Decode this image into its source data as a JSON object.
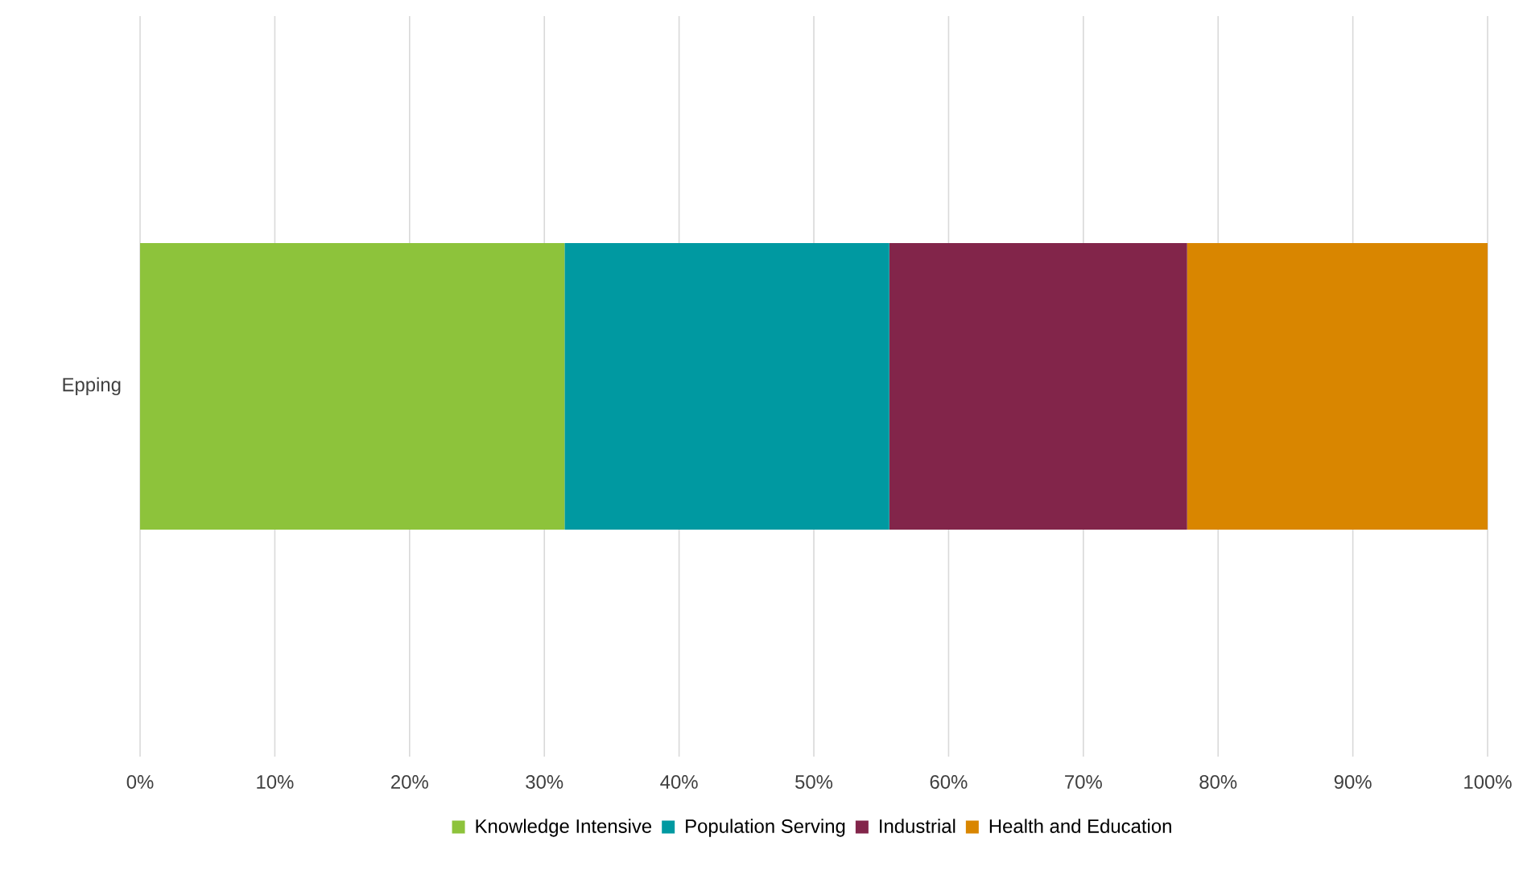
{
  "chart_data": {
    "type": "bar",
    "orientation": "horizontal",
    "stacked": true,
    "categories": [
      "Epping"
    ],
    "series": [
      {
        "name": "Knowledge Intensive",
        "color": "#8dc33b",
        "values": [
          31.5
        ]
      },
      {
        "name": "Population Serving",
        "color": "#0099a1",
        "values": [
          24.1
        ]
      },
      {
        "name": "Industrial",
        "color": "#82254a",
        "values": [
          22.1
        ]
      },
      {
        "name": "Health and Education",
        "color": "#d98600",
        "values": [
          22.3
        ]
      }
    ],
    "xlim": [
      0,
      100
    ],
    "xticks": [
      {
        "value": 0,
        "label": "0%"
      },
      {
        "value": 10,
        "label": "10%"
      },
      {
        "value": 20,
        "label": "20%"
      },
      {
        "value": 30,
        "label": "30%"
      },
      {
        "value": 40,
        "label": "40%"
      },
      {
        "value": 50,
        "label": "50%"
      },
      {
        "value": 60,
        "label": "60%"
      },
      {
        "value": 70,
        "label": "70%"
      },
      {
        "value": 80,
        "label": "80%"
      },
      {
        "value": 90,
        "label": "90%"
      },
      {
        "value": 100,
        "label": "100%"
      }
    ],
    "grid": "x",
    "legend": "bottom"
  }
}
